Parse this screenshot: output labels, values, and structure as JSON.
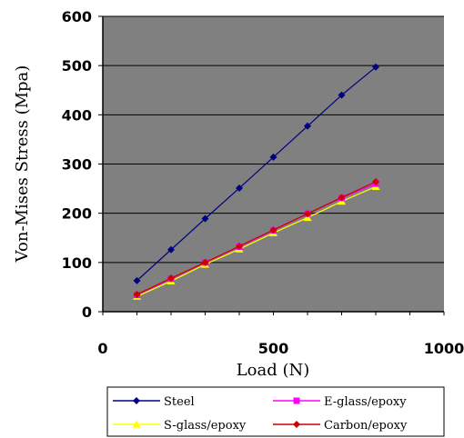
{
  "chart_data": {
    "type": "line",
    "title": "",
    "xlabel": "Load (N)",
    "ylabel": "Von-Mises Stress (Mpa)",
    "xlim": [
      0,
      1000
    ],
    "ylim": [
      0,
      600
    ],
    "x_ticks": [
      "0",
      "500",
      "1000"
    ],
    "y_ticks": [
      "0",
      "100",
      "200",
      "300",
      "400",
      "500",
      "600"
    ],
    "grid": "horizontal",
    "legend_position": "bottom",
    "plot_background": "#808080",
    "series": [
      {
        "name": "Steel",
        "color": "#000080",
        "marker": "diamond",
        "x": [
          100,
          200,
          300,
          400,
          500,
          600,
          700,
          800
        ],
        "y": [
          63,
          126,
          189,
          251,
          314,
          377,
          440,
          497
        ]
      },
      {
        "name": "E-glass/epoxy",
        "color": "#ff00ff",
        "marker": "square",
        "x": [
          100,
          200,
          300,
          400,
          500,
          600,
          700,
          800
        ],
        "y": [
          34,
          67,
          100,
          132,
          165,
          199,
          231,
          260
        ]
      },
      {
        "name": "S-glass/epoxy",
        "color": "#ffff00",
        "marker": "triangle",
        "x": [
          100,
          200,
          300,
          400,
          500,
          600,
          700,
          800
        ],
        "y": [
          31,
          62,
          96,
          127,
          160,
          191,
          224,
          254
        ]
      },
      {
        "name": "Carbon/epoxy",
        "color": "#cc0000",
        "marker": "diamond",
        "x": [
          100,
          200,
          300,
          400,
          500,
          600,
          700,
          800
        ],
        "y": [
          35,
          68,
          100,
          133,
          166,
          199,
          232,
          264
        ]
      }
    ]
  }
}
